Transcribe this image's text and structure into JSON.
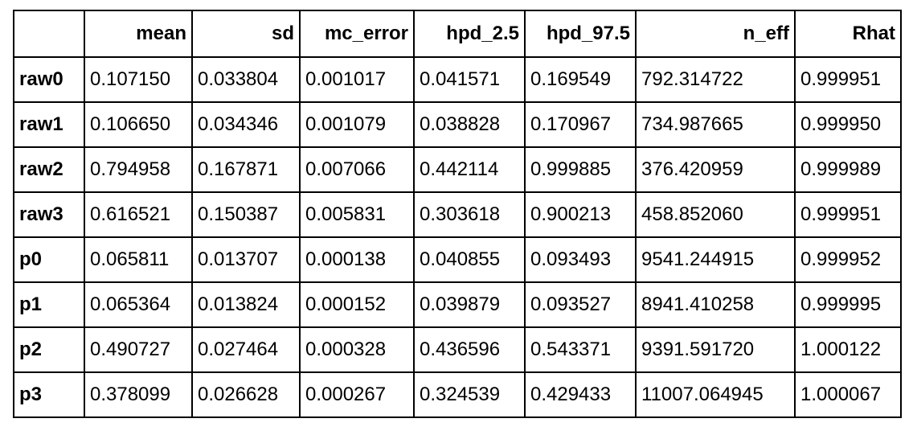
{
  "table": {
    "columns": [
      "",
      "mean",
      "sd",
      "mc_error",
      "hpd_2.5",
      "hpd_97.5",
      "n_eff",
      "Rhat"
    ],
    "rows": [
      {
        "index": "raw0",
        "mean": "0.107150",
        "sd": "0.033804",
        "mc_error": "0.001017",
        "hpd_2_5": "0.041571",
        "hpd_97_5": "0.169549",
        "n_eff": "792.314722",
        "rhat": "0.999951"
      },
      {
        "index": "raw1",
        "mean": "0.106650",
        "sd": "0.034346",
        "mc_error": "0.001079",
        "hpd_2_5": "0.038828",
        "hpd_97_5": "0.170967",
        "n_eff": "734.987665",
        "rhat": "0.999950"
      },
      {
        "index": "raw2",
        "mean": "0.794958",
        "sd": "0.167871",
        "mc_error": "0.007066",
        "hpd_2_5": "0.442114",
        "hpd_97_5": "0.999885",
        "n_eff": "376.420959",
        "rhat": "0.999989"
      },
      {
        "index": "raw3",
        "mean": "0.616521",
        "sd": "0.150387",
        "mc_error": "0.005831",
        "hpd_2_5": "0.303618",
        "hpd_97_5": "0.900213",
        "n_eff": "458.852060",
        "rhat": "0.999951"
      },
      {
        "index": "p0",
        "mean": "0.065811",
        "sd": "0.013707",
        "mc_error": "0.000138",
        "hpd_2_5": "0.040855",
        "hpd_97_5": "0.093493",
        "n_eff": "9541.244915",
        "rhat": "0.999952"
      },
      {
        "index": "p1",
        "mean": "0.065364",
        "sd": "0.013824",
        "mc_error": "0.000152",
        "hpd_2_5": "0.039879",
        "hpd_97_5": "0.093527",
        "n_eff": "8941.410258",
        "rhat": "0.999995"
      },
      {
        "index": "p2",
        "mean": "0.490727",
        "sd": "0.027464",
        "mc_error": "0.000328",
        "hpd_2_5": "0.436596",
        "hpd_97_5": "0.543371",
        "n_eff": "9391.591720",
        "rhat": "1.000122"
      },
      {
        "index": "p3",
        "mean": "0.378099",
        "sd": "0.026628",
        "mc_error": "0.000267",
        "hpd_2_5": "0.324539",
        "hpd_97_5": "0.429433",
        "n_eff": "11007.064945",
        "rhat": "1.000067"
      }
    ]
  }
}
